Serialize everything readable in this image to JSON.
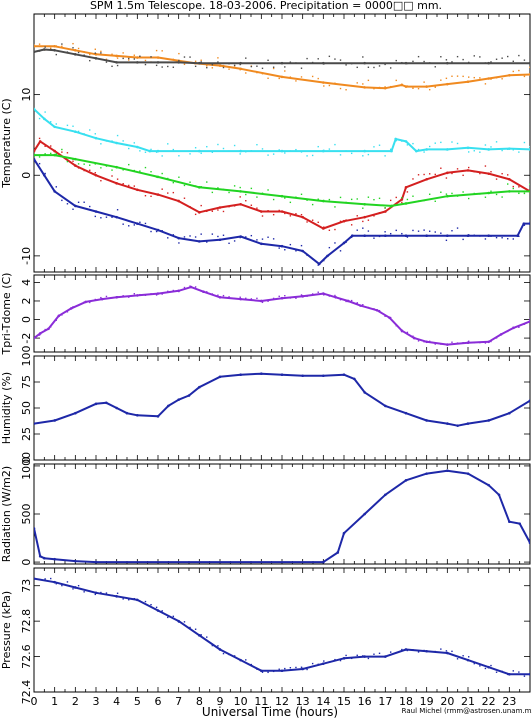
{
  "header": {
    "title": "SPM 1.5m Telescope. 18-03-2006. Precipitation = 0000□□ mm."
  },
  "footer": {
    "xlabel": "Universal Time (hours)",
    "credit": "Raul Michel (rmm@astrosen.unam.mx)"
  },
  "colors": {
    "orange": "#f08a20",
    "dark_gray": "#4a4a4a",
    "cyan": "#38e0f0",
    "red": "#d42020",
    "green": "#22d422",
    "navy": "#1e28a8",
    "purple": "#8a2cd8",
    "frame": "#000000"
  },
  "chart_data": [
    {
      "type": "scatter",
      "panel": "temperature",
      "ylabel": "Temperature (C)",
      "xlim": [
        0,
        24
      ],
      "ylim": [
        -12,
        20
      ],
      "yticks": [
        -10,
        0,
        10
      ],
      "x_ticks": [
        0,
        1,
        2,
        3,
        4,
        5,
        6,
        7,
        8,
        9,
        10,
        11,
        12,
        13,
        14,
        15,
        16,
        17,
        18,
        19,
        20,
        21,
        22,
        23
      ],
      "series": [
        {
          "color_key": "orange",
          "x": [
            0,
            1,
            2,
            3,
            4,
            5,
            6,
            7,
            7.8,
            9,
            10,
            12,
            14,
            16,
            17,
            17.8,
            18,
            19,
            20,
            21,
            22,
            23,
            24
          ],
          "y": [
            16,
            16,
            15.5,
            15,
            14.8,
            14.6,
            14.6,
            14.2,
            13.9,
            13.6,
            13.2,
            12.2,
            11.5,
            10.9,
            10.8,
            11.2,
            11,
            11,
            11.3,
            11.6,
            12,
            12.4,
            12.5
          ]
        },
        {
          "color_key": "dark_gray",
          "x": [
            0,
            0.5,
            1,
            2,
            3,
            4,
            5,
            6,
            7,
            8,
            10,
            12,
            14,
            16,
            18,
            20,
            22,
            24
          ],
          "y": [
            15.3,
            15.6,
            15.5,
            15,
            14.5,
            14,
            14,
            14,
            14,
            13.9,
            13.9,
            13.9,
            13.9,
            13.9,
            13.9,
            13.9,
            13.9,
            13.9
          ]
        },
        {
          "color_key": "cyan",
          "x": [
            0,
            0.5,
            1,
            2,
            3,
            4,
            5,
            5.6,
            6,
            8,
            10,
            12,
            14,
            16,
            17.3,
            17.5,
            18,
            18.5,
            19,
            20,
            21,
            22,
            23,
            24
          ],
          "y": [
            8.2,
            7,
            6,
            5.4,
            4.6,
            4,
            3.5,
            3,
            3,
            3,
            3,
            3,
            3,
            3,
            3,
            4.5,
            4.2,
            3,
            3.2,
            3.2,
            3.4,
            3.2,
            3.3,
            3.2
          ]
        },
        {
          "color_key": "red",
          "x": [
            0,
            0.3,
            1,
            2,
            3,
            4,
            5,
            6,
            7,
            8,
            9,
            10,
            11,
            12,
            13,
            14,
            15,
            16,
            17,
            17.8,
            18,
            19,
            20,
            21,
            22,
            23,
            24
          ],
          "y": [
            3,
            4.2,
            3,
            1.2,
            0,
            -1,
            -1.8,
            -2.4,
            -3.2,
            -4.6,
            -4,
            -3.6,
            -4.5,
            -4.5,
            -5.2,
            -6.6,
            -5.7,
            -5.2,
            -4.5,
            -3,
            -1.5,
            -0.5,
            0.3,
            0.6,
            0.2,
            -0.5,
            -2
          ]
        },
        {
          "color_key": "green",
          "x": [
            0,
            1,
            2,
            4,
            6,
            8,
            10,
            12,
            14,
            16,
            17.3,
            18,
            20,
            22,
            23,
            24
          ],
          "y": [
            2.5,
            2.5,
            2,
            1,
            -0.2,
            -1.5,
            -2,
            -2.6,
            -3.2,
            -3.6,
            -3.8,
            -3.5,
            -2.6,
            -2.2,
            -2,
            -2
          ]
        },
        {
          "color_key": "navy",
          "x": [
            0,
            0.5,
            1,
            2,
            3,
            4,
            5,
            6,
            7,
            8,
            9,
            10,
            11,
            12,
            13,
            13.8,
            14.2,
            15,
            15.4,
            16,
            17,
            18,
            19,
            20,
            21,
            22,
            23.4,
            23.7,
            24
          ],
          "y": [
            2,
            0,
            -2,
            -3.8,
            -4.5,
            -5.2,
            -6,
            -6.8,
            -7.8,
            -8.2,
            -8,
            -7.6,
            -8.5,
            -8.8,
            -9.4,
            -11,
            -10,
            -8.4,
            -7.5,
            -7.5,
            -7.5,
            -7.5,
            -7.5,
            -7.5,
            -7.5,
            -7.5,
            -7.5,
            -6,
            -6
          ]
        }
      ]
    },
    {
      "type": "scatter",
      "panel": "tpri_tdome",
      "ylabel": "Tpri-Tdome (C)",
      "xlim": [
        0,
        24
      ],
      "ylim": [
        -3.5,
        4.8
      ],
      "yticks": [
        -2,
        0,
        2,
        4
      ],
      "series": [
        {
          "color_key": "purple",
          "x": [
            0,
            0.3,
            0.7,
            1.2,
            1.8,
            2.5,
            3.3,
            4,
            5,
            6,
            7,
            7.6,
            8.2,
            9,
            10,
            11,
            12,
            13,
            14,
            14.6,
            15.2,
            15.8,
            16.6,
            17.2,
            17.8,
            18.4,
            19,
            20,
            21,
            22,
            22.6,
            23.2,
            24
          ],
          "y": [
            -2,
            -1.5,
            -1,
            0.4,
            1.2,
            1.9,
            2.2,
            2.4,
            2.6,
            2.8,
            3.1,
            3.5,
            3,
            2.4,
            2.2,
            2,
            2.3,
            2.5,
            2.8,
            2.4,
            2,
            1.5,
            1,
            0.2,
            -1.2,
            -2,
            -2.4,
            -2.7,
            -2.5,
            -2.4,
            -1.6,
            -0.9,
            -0.2
          ]
        }
      ]
    },
    {
      "type": "line",
      "panel": "humidity",
      "ylabel": "Humidity (%)",
      "xlim": [
        0,
        24
      ],
      "ylim": [
        0,
        100
      ],
      "yticks": [
        0,
        25,
        50,
        75,
        100
      ],
      "series": [
        {
          "color_key": "navy",
          "x": [
            0,
            1,
            2,
            3,
            3.5,
            4,
            4.5,
            5,
            6,
            6.5,
            7,
            7.5,
            8,
            9,
            10,
            11,
            12,
            13,
            14,
            15,
            15.5,
            16,
            17,
            18,
            19,
            20,
            20.5,
            21,
            22,
            23,
            24
          ],
          "y": [
            35,
            38,
            45,
            54,
            55,
            50,
            45,
            43,
            42,
            52,
            58,
            62,
            70,
            80,
            82,
            83,
            82,
            81,
            81,
            82,
            78,
            65,
            52,
            45,
            38,
            35,
            33,
            35,
            38,
            45,
            57
          ]
        }
      ]
    },
    {
      "type": "line",
      "panel": "radiation",
      "ylabel": "Radiation (W/m2)",
      "xlim": [
        0,
        24
      ],
      "ylim": [
        -20,
        1020
      ],
      "yticks": [
        0,
        500,
        1000
      ],
      "series": [
        {
          "color_key": "navy",
          "x": [
            0,
            0.3,
            0.5,
            1,
            2,
            3,
            14,
            14.7,
            15,
            16,
            17,
            18,
            19,
            20,
            21,
            22,
            22.5,
            23,
            23.5,
            24
          ],
          "y": [
            350,
            60,
            40,
            30,
            10,
            0,
            0,
            100,
            300,
            500,
            700,
            850,
            920,
            950,
            920,
            800,
            700,
            420,
            400,
            200
          ]
        }
      ]
    },
    {
      "type": "scatter",
      "panel": "pressure",
      "ylabel": "Pressure (kPa)",
      "xlim": [
        0,
        24
      ],
      "ylim": [
        72.4,
        73.1
      ],
      "yticks": [
        72.4,
        72.6,
        72.8,
        73
      ],
      "series": [
        {
          "color_key": "navy",
          "x": [
            0,
            1,
            2,
            3,
            4,
            5,
            6,
            7,
            8,
            9,
            10,
            11,
            12,
            13,
            14,
            15,
            16,
            17,
            18,
            19,
            20,
            21,
            22,
            23,
            24
          ],
          "y": [
            73.04,
            73.02,
            72.99,
            72.96,
            72.94,
            72.92,
            72.86,
            72.8,
            72.72,
            72.64,
            72.58,
            72.52,
            72.52,
            72.53,
            72.56,
            72.59,
            72.6,
            72.6,
            72.64,
            72.63,
            72.62,
            72.58,
            72.54,
            72.5,
            72.5
          ]
        }
      ]
    }
  ]
}
